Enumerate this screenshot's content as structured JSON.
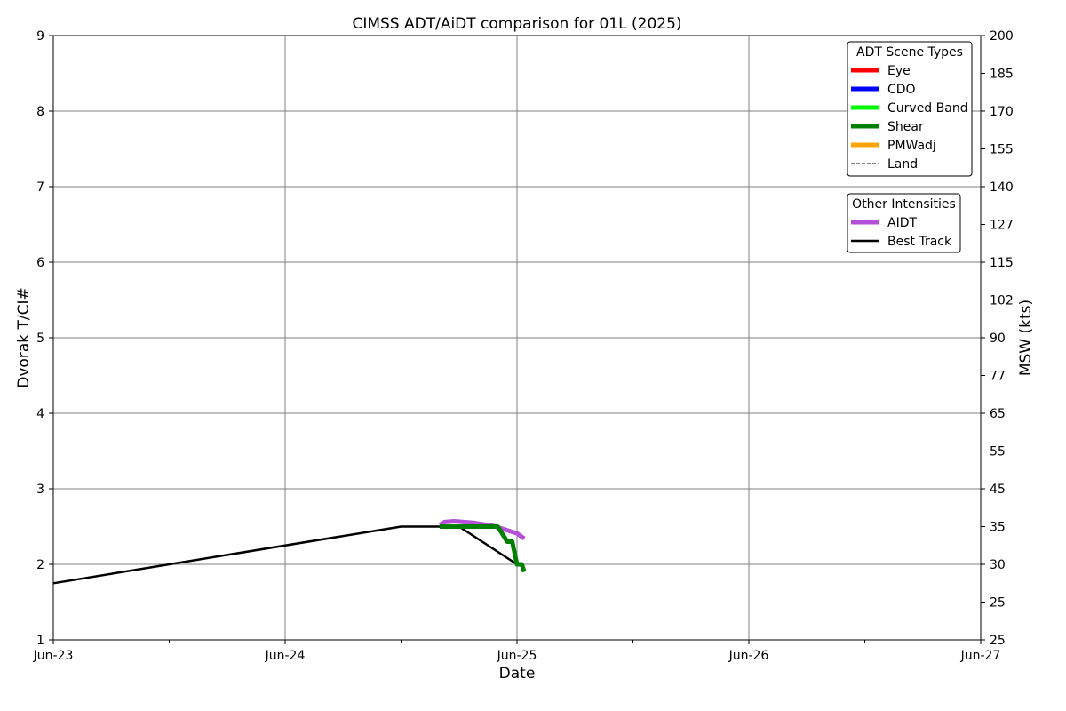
{
  "chart_data": {
    "type": "line",
    "title": "CIMSS ADT/AiDT comparison for 01L (2025)",
    "xlabel": "Date",
    "ylabel": "Dvorak T/CI#",
    "ylabel_right": "MSW (kts)",
    "x_range": [
      "Jun-23",
      "Jun-27"
    ],
    "x_ticks": [
      "Jun-23",
      "Jun-24",
      "Jun-25",
      "Jun-26",
      "Jun-27"
    ],
    "ylim": [
      1,
      9
    ],
    "y_ticks": [
      "1",
      "2",
      "3",
      "4",
      "5",
      "6",
      "7",
      "8",
      "9"
    ],
    "y_right_ticks": [
      "25",
      "25",
      "30",
      "35",
      "45",
      "55",
      "65",
      "77",
      "90",
      "102",
      "115",
      "127",
      "140",
      "155",
      "170",
      "185",
      "200"
    ],
    "grid": true,
    "legends": [
      {
        "title": "ADT Scene Types",
        "placement": "top-right",
        "entries": [
          {
            "label": "Eye",
            "color": "#ff0000",
            "style": "solid"
          },
          {
            "label": "CDO",
            "color": "#0000ff",
            "style": "solid"
          },
          {
            "label": "Curved Band",
            "color": "#00ff00",
            "style": "solid"
          },
          {
            "label": "Shear",
            "color": "#008000",
            "style": "solid"
          },
          {
            "label": "PMWadj",
            "color": "#ffa500",
            "style": "solid"
          },
          {
            "label": "Land",
            "color": "#000000",
            "style": "dashed"
          }
        ]
      },
      {
        "title": "Other Intensities",
        "placement": "top-right",
        "entries": [
          {
            "label": "AIDT",
            "color": "#b44fd8",
            "style": "solid"
          },
          {
            "label": "Best Track",
            "color": "#000000",
            "style": "solid"
          }
        ]
      }
    ],
    "series": [
      {
        "name": "Best Track",
        "color": "#000000",
        "points": [
          [
            "2025-06-23T00:00",
            1.75
          ],
          [
            "2025-06-24T12:00",
            2.5
          ],
          [
            "2025-06-24T18:00",
            2.5
          ],
          [
            "2025-06-25T00:00",
            2.0
          ]
        ]
      },
      {
        "name": "AIDT",
        "color": "#b44fd8",
        "points": [
          [
            "2025-06-24T16:00",
            2.52
          ],
          [
            "2025-06-24T16:30",
            2.56
          ],
          [
            "2025-06-24T17:30",
            2.57
          ],
          [
            "2025-06-24T18:30",
            2.56
          ],
          [
            "2025-06-24T19:30",
            2.55
          ],
          [
            "2025-06-24T20:30",
            2.53
          ],
          [
            "2025-06-24T21:30",
            2.51
          ],
          [
            "2025-06-24T22:30",
            2.47
          ],
          [
            "2025-06-24T23:30",
            2.43
          ],
          [
            "2025-06-25T00:00",
            2.41
          ],
          [
            "2025-06-25T00:45",
            2.34
          ]
        ]
      },
      {
        "name": "Shear",
        "color": "#008000",
        "points": [
          [
            "2025-06-24T16:00",
            2.5
          ],
          [
            "2025-06-24T22:00",
            2.5
          ],
          [
            "2025-06-24T23:00",
            2.3
          ],
          [
            "2025-06-24T23:30",
            2.3
          ],
          [
            "2025-06-25T00:00",
            2.0
          ],
          [
            "2025-06-25T00:30",
            2.0
          ],
          [
            "2025-06-25T00:45",
            1.9
          ]
        ]
      }
    ]
  }
}
